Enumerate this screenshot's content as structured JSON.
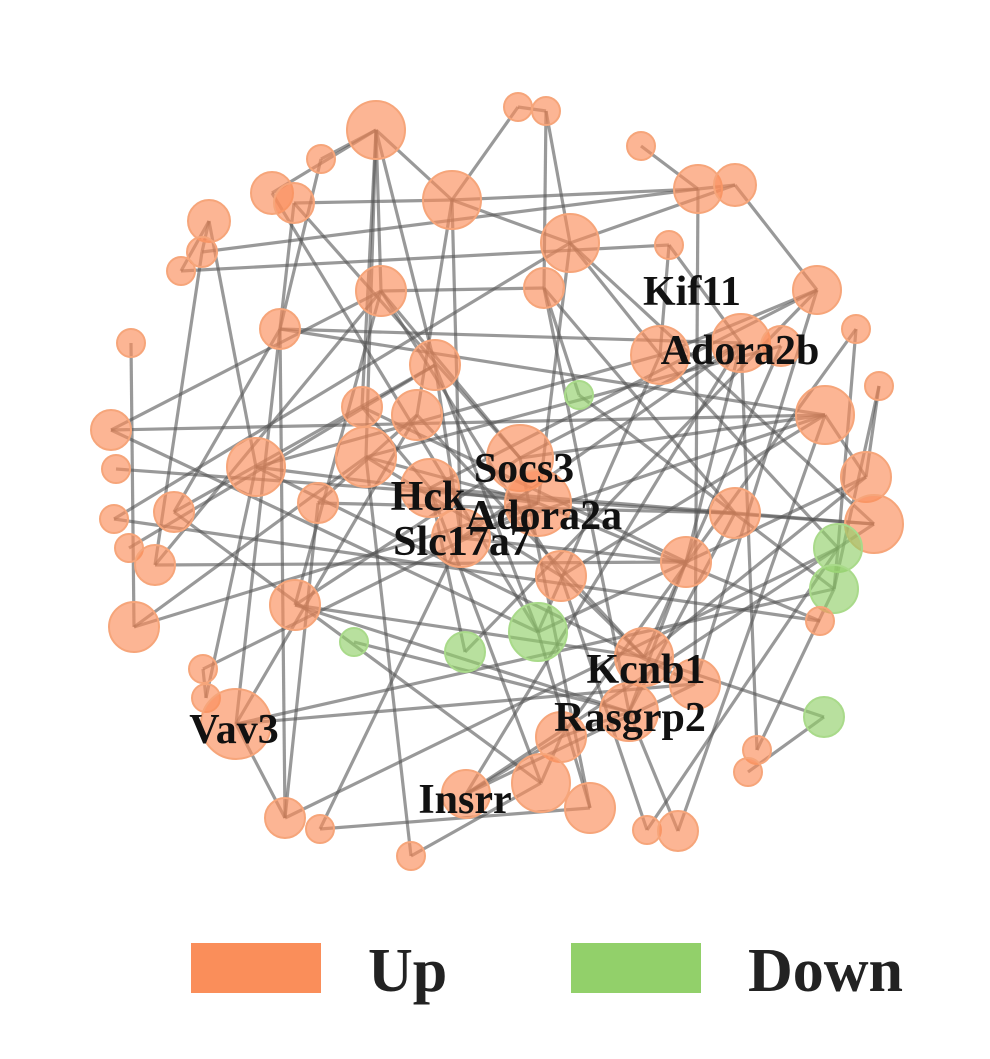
{
  "colors": {
    "up": "#fa8e5a",
    "down": "#92d06a"
  },
  "labels": [
    {
      "id": "kif11",
      "text": "Kif11"
    },
    {
      "id": "adora2b",
      "text": "Adora2b"
    },
    {
      "id": "socs3",
      "text": "Socs3"
    },
    {
      "id": "hck",
      "text": "Hck"
    },
    {
      "id": "adora2a",
      "text": "Adora2a"
    },
    {
      "id": "slc17a7",
      "text": "Slc17a7"
    },
    {
      "id": "kcnb1",
      "text": "Kcnb1"
    },
    {
      "id": "rasgrp2",
      "text": "Rasgrp2"
    },
    {
      "id": "vav3",
      "text": "Vav3"
    },
    {
      "id": "insrr",
      "text": "Insrr"
    }
  ],
  "legend": {
    "up": {
      "label": "Up",
      "color": "#fa8e5a"
    },
    "down": {
      "label": "Down",
      "color": "#92d06a"
    }
  }
}
